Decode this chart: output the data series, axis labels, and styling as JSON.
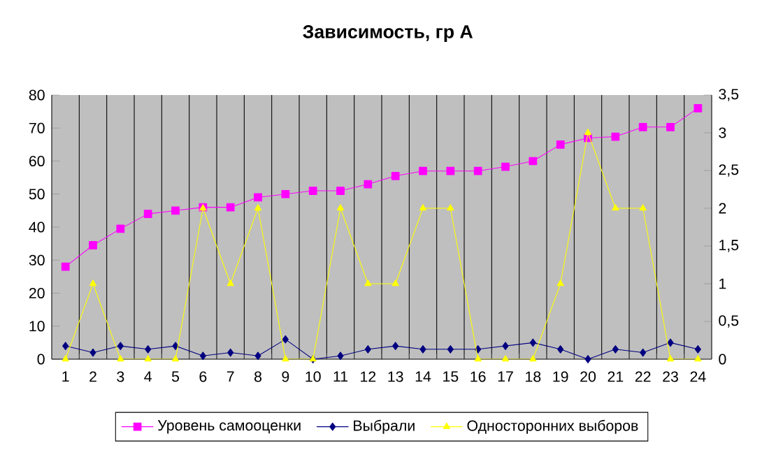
{
  "chart_data": {
    "type": "line",
    "title": "Зависимость, гр А",
    "categories": [
      "1",
      "2",
      "3",
      "4",
      "5",
      "6",
      "7",
      "8",
      "9",
      "10",
      "11",
      "12",
      "13",
      "14",
      "15",
      "16",
      "17",
      "18",
      "19",
      "20",
      "21",
      "22",
      "23",
      "24"
    ],
    "series": [
      {
        "name": "Уровень самооценки",
        "color": "#ff00ff",
        "marker": "square",
        "values": [
          28,
          34.5,
          39.5,
          44,
          45,
          46,
          46,
          49,
          50,
          51,
          51,
          53,
          55.5,
          57,
          57,
          57,
          58.3,
          60,
          65,
          67,
          67.4,
          70.3,
          70.3,
          76
        ]
      },
      {
        "name": "Выбрали",
        "color": "#000080",
        "marker": "diamond",
        "values": [
          4,
          2,
          4,
          3,
          4,
          1,
          2,
          1,
          6,
          0,
          1,
          3,
          4,
          3,
          3,
          3,
          4,
          5,
          3,
          0,
          3,
          2,
          5,
          3
        ]
      },
      {
        "name": "Односторонних выборов",
        "color": "#ffff00",
        "marker": "triangle",
        "axis": "y2",
        "values": [
          0,
          1,
          0,
          0,
          0,
          2,
          1,
          2,
          0,
          0,
          2,
          1,
          1,
          2,
          2,
          0,
          0,
          0,
          1,
          3,
          2,
          2,
          0,
          0
        ]
      }
    ],
    "ylim": [
      0,
      80
    ],
    "yticks": [
      0,
      10,
      20,
      30,
      40,
      50,
      60,
      70,
      80
    ],
    "y2lim": [
      0,
      3.5
    ],
    "y2ticks": [
      0,
      {
        "value": 0.5,
        "label": "0,5"
      },
      1,
      {
        "value": 1.5,
        "label": "1,5"
      },
      2,
      {
        "value": 2.5,
        "label": "2,5"
      },
      3,
      {
        "value": 3.5,
        "label": "3,5"
      }
    ],
    "grid": "x",
    "legend": "bottom",
    "line_style": "solid"
  }
}
